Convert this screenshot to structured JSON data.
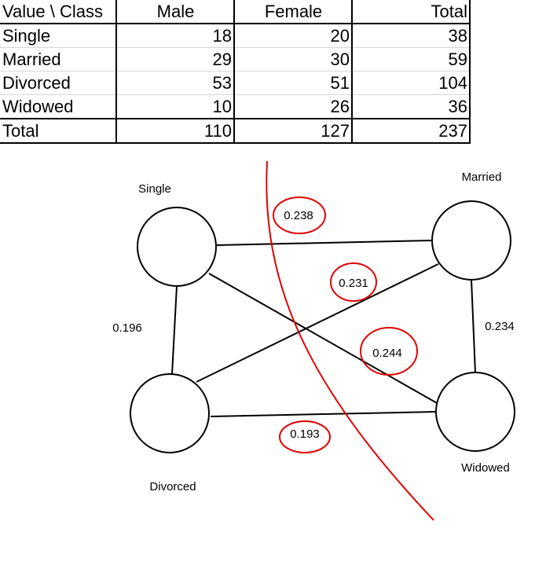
{
  "table": {
    "headers": [
      "Value \\ Class",
      "Male",
      "Female",
      "Total"
    ],
    "rows": [
      {
        "label": "Single",
        "male": "18",
        "female": "20",
        "total": "38"
      },
      {
        "label": "Married",
        "male": "29",
        "female": "30",
        "total": "59"
      },
      {
        "label": "Divorced",
        "male": "53",
        "female": "51",
        "total": "104"
      },
      {
        "label": "Widowed",
        "male": "10",
        "female": "26",
        "total": "36"
      }
    ],
    "footer": {
      "label": "Total",
      "male": "110",
      "female": "127",
      "total": "237"
    }
  },
  "graph": {
    "nodes": {
      "single": "Single",
      "married": "Married",
      "divorced": "Divorced",
      "widowed": "Widowed"
    },
    "edges": {
      "single_married": "0.238",
      "married_divorced": "0.231",
      "single_widowed": "0.244",
      "divorced_widowed": "0.193",
      "single_divorced": "0.196",
      "married_widowed": "0.234"
    },
    "highlight_color": "#e00000"
  }
}
